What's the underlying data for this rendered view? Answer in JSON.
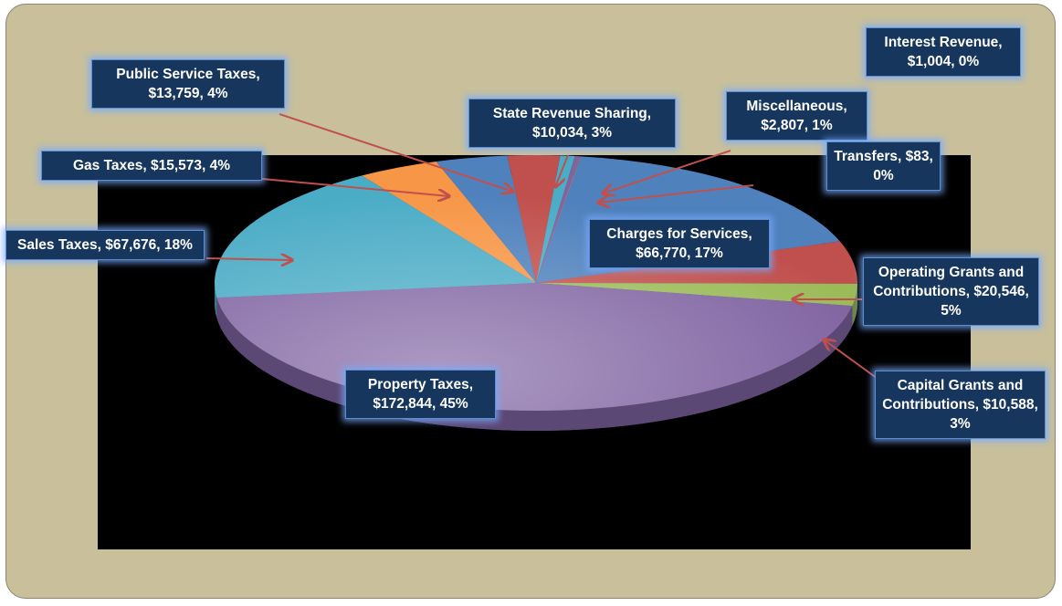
{
  "chart_data": {
    "type": "pie",
    "values": [
      66770,
      20546,
      10588,
      172844,
      67676,
      15573,
      13759,
      10034,
      2807,
      1004,
      83
    ],
    "value_labels": [
      "Charges for Services, $66,770, 17%",
      "Operating Grants and Contributions, $20,546, 5%",
      "Capital Grants and Contributions, $10,588, 3%",
      "Property Taxes, $172,844, 45%",
      "Sales Taxes, $67,676, 18%",
      "Gas Taxes, $15,573, 4%",
      "Public Service Taxes, $13,759, 4%",
      "State Revenue Sharing, $10,034, 3%",
      "Miscellaneous, $2,807, 1%",
      "Interest Revenue, $1,004, 0%",
      "Transfers, $83, 0%"
    ],
    "colors": [
      "#4f81bd",
      "#c0504d",
      "#9bbb59",
      "#8064a2",
      "#4bacc6",
      "#f79646",
      "#4f81bd",
      "#c0504d",
      "#4bacc6",
      "#8064a2",
      "#f79646"
    ]
  }
}
